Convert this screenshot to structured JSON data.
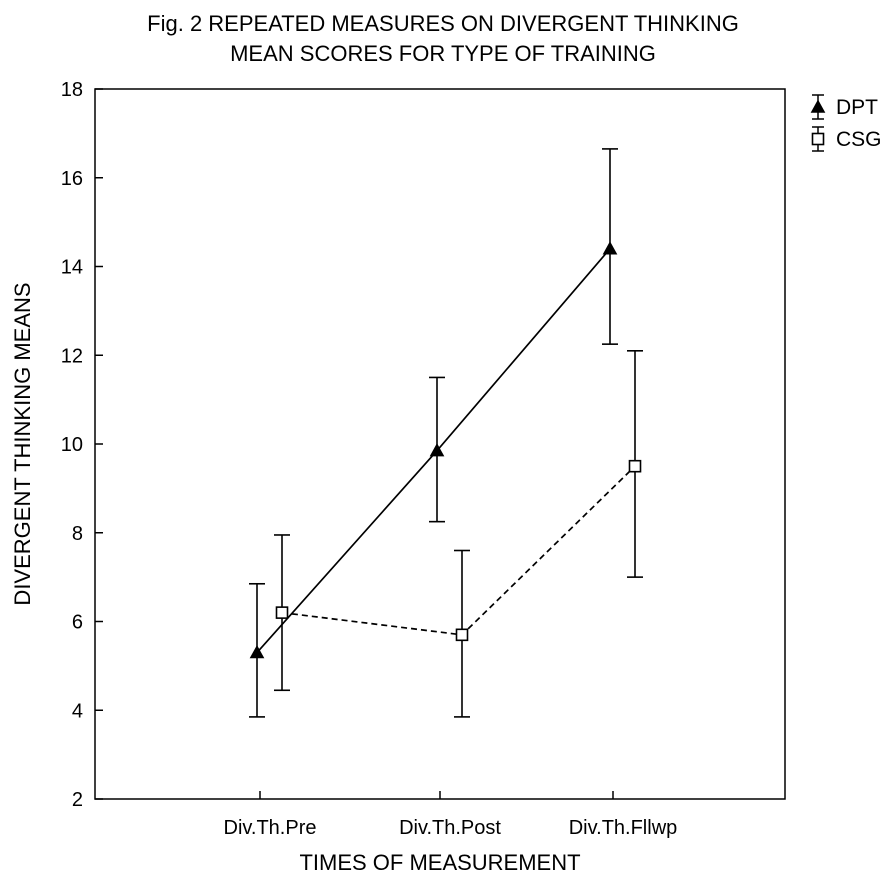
{
  "chart_data": {
    "type": "line",
    "title_lines": [
      "Fig. 2 REPEATED MEASURES ON DIVERGENT THINKING",
      "MEAN SCORES FOR TYPE OF TRAINING"
    ],
    "xlabel": "TIMES OF MEASUREMENT",
    "ylabel": "DIVERGENT THINKING MEANS",
    "categories": [
      "Div.Th.Pre",
      "Div.Th.Post",
      "Div.Th.Fllwp"
    ],
    "ylim": [
      2,
      18
    ],
    "yticks": [
      2,
      4,
      6,
      8,
      10,
      12,
      14,
      16,
      18
    ],
    "grid": false,
    "legend_position": "top-right",
    "series": [
      {
        "name": "DPT",
        "marker": "filled-triangle",
        "line_style": "solid",
        "color": "#000000",
        "values": [
          5.3,
          9.85,
          14.4
        ],
        "error_low": [
          3.85,
          8.25,
          12.25
        ],
        "error_high": [
          6.85,
          11.5,
          16.65
        ]
      },
      {
        "name": "CSG",
        "marker": "open-square",
        "line_style": "dashed",
        "color": "#000000",
        "values": [
          6.2,
          5.7,
          9.5
        ],
        "error_low": [
          4.45,
          3.85,
          7.0
        ],
        "error_high": [
          7.95,
          7.6,
          12.1
        ]
      }
    ]
  }
}
